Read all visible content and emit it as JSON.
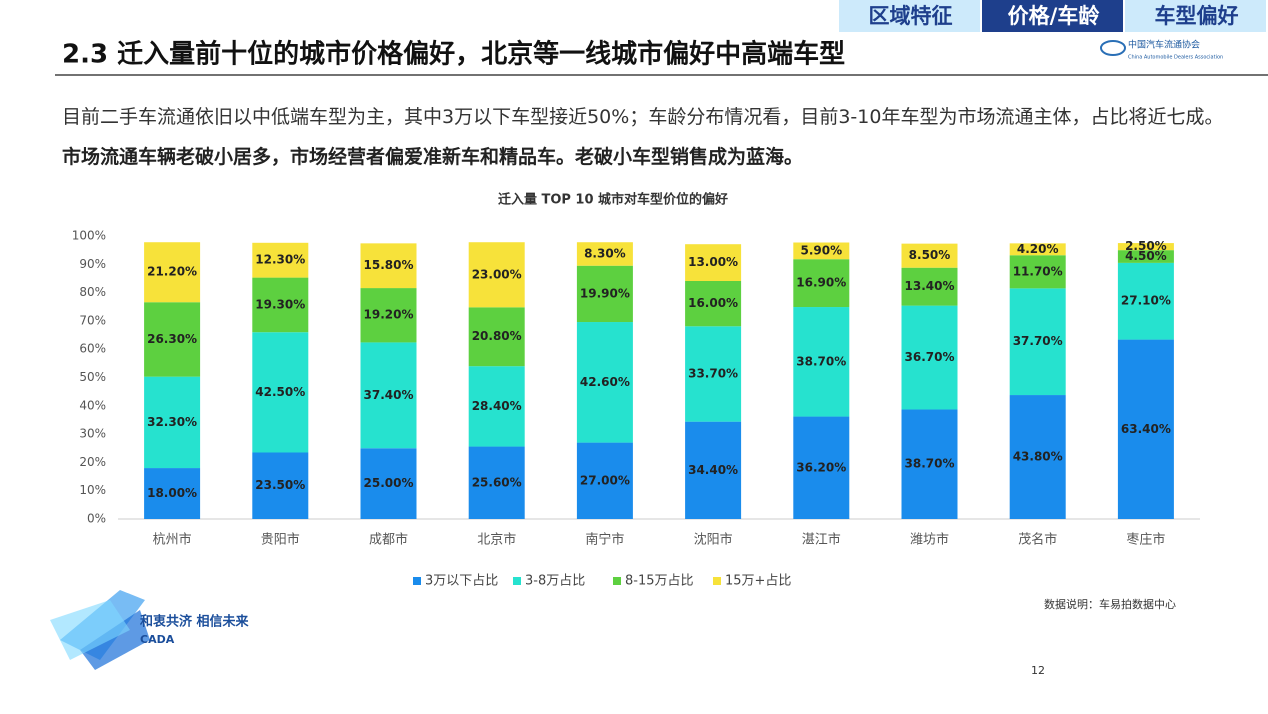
{
  "header": {
    "tabs": [
      "区域特征",
      "价格/车龄",
      "车型偏好"
    ],
    "active_tab": 1,
    "title": "2.3 迁入量前十位的城市价格偏好，北京等一线城市偏好中高端车型",
    "logo_cn": "中国汽车流通协会",
    "logo_en": "China Automobile Dealers Association"
  },
  "intro": {
    "normal": "目前二手车流通依旧以中低端车型为主，其中3万以下车型接近50%；车龄分布情况看，目前3-10年车型为市场流通主体，占比将近七成。",
    "bold": "市场流通车辆老破小居多，市场经营者偏爱准新车和精品车。老破小车型销售成为蓝海。"
  },
  "chart_data": {
    "type": "stacked_bar",
    "title": "迁入量 TOP 10 城市对车型价位的偏好",
    "categories": [
      "杭州市",
      "贵阳市",
      "成都市",
      "北京市",
      "南宁市",
      "沈阳市",
      "湛江市",
      "潍坊市",
      "茂名市",
      "枣庄市"
    ],
    "series": [
      {
        "name": "3万以下占比",
        "color": "#1a8cec",
        "values": [
          18.0,
          23.5,
          25.0,
          25.6,
          27.0,
          34.4,
          36.2,
          38.7,
          43.8,
          63.4
        ],
        "value_labels": [
          "18.00%",
          "23.50%",
          "25.00%",
          "25.60%",
          "27.00%",
          "34.40%",
          "36.20%",
          "38.70%",
          "43.80%",
          "63.40%"
        ]
      },
      {
        "name": "3-8万占比",
        "color": "#26e2cf",
        "values": [
          32.3,
          42.5,
          37.4,
          28.4,
          42.6,
          33.7,
          38.7,
          36.7,
          37.7,
          27.1
        ],
        "value_labels": [
          "32.30%",
          "42.50%",
          "37.40%",
          "28.40%",
          "42.60%",
          "33.70%",
          "38.70%",
          "36.70%",
          "37.70%",
          "27.10%"
        ]
      },
      {
        "name": "8-15万占比",
        "color": "#5dd040",
        "values": [
          26.3,
          19.3,
          19.2,
          20.8,
          19.9,
          16.0,
          16.9,
          13.4,
          11.7,
          4.5
        ],
        "value_labels": [
          "26.30%",
          "19.30%",
          "19.20%",
          "20.80%",
          "19.90%",
          "16.00%",
          "16.90%",
          "13.40%",
          "11.70%",
          "4.50%"
        ]
      },
      {
        "name": "15万+占比",
        "color": "#f7e23a",
        "values": [
          21.2,
          12.3,
          15.8,
          23.0,
          8.3,
          13.0,
          5.9,
          8.5,
          4.2,
          2.5
        ],
        "value_labels": [
          "21.20%",
          "12.30%",
          "15.80%",
          "23.00%",
          "8.30%",
          "13.00%",
          "5.90%",
          "8.50%",
          "4.20%",
          "2.50%"
        ]
      }
    ],
    "ylim": [
      0,
      100
    ],
    "yticks": [
      {
        "value": 0,
        "label": "0%"
      },
      {
        "value": 10,
        "label": "10%"
      },
      {
        "value": 20,
        "label": "20%"
      },
      {
        "value": 30,
        "label": "30%"
      },
      {
        "value": 40,
        "label": "40%"
      },
      {
        "value": 50,
        "label": "50%"
      },
      {
        "value": 60,
        "label": "60%"
      },
      {
        "value": 70,
        "label": "70%"
      },
      {
        "value": 80,
        "label": "80%"
      },
      {
        "value": 90,
        "label": "90%"
      },
      {
        "value": 100,
        "label": "100%"
      }
    ],
    "grid": false,
    "legend": "bottom"
  },
  "footer": {
    "source": "数据说明：车易拍数据中心",
    "page": "12",
    "slogan": "和衷共济 相信未来",
    "event": "CADA"
  }
}
